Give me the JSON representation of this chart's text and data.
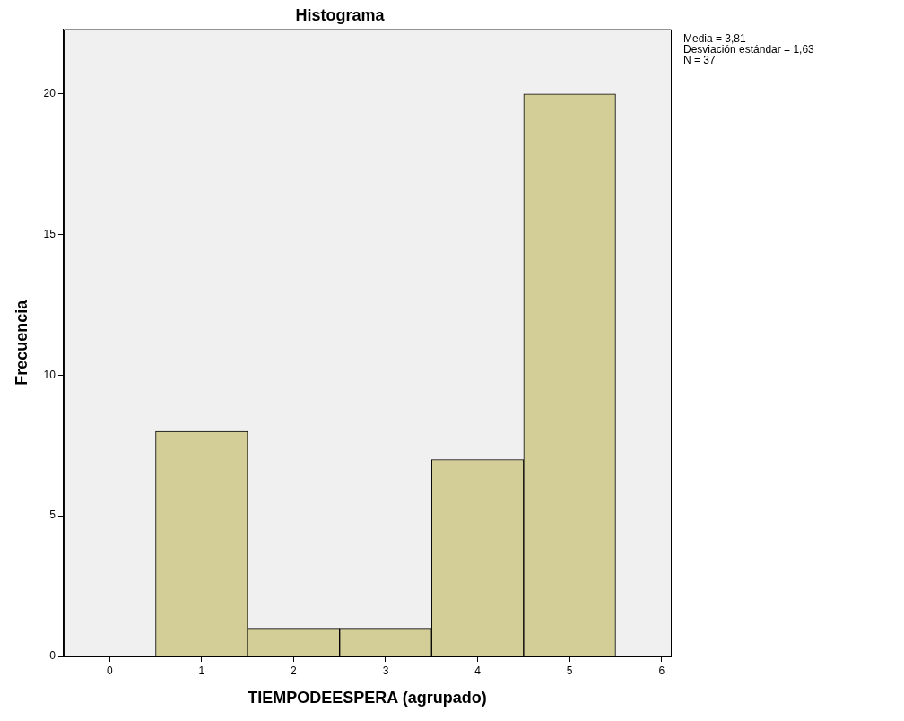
{
  "chart_data": {
    "type": "histogram",
    "title": "Histograma",
    "xlabel": "TIEMPODEESPERA (agrupado)",
    "ylabel": "Frecuencia",
    "bins": [
      0.5,
      1.5,
      2.5,
      3.5,
      4.5,
      5.5
    ],
    "values": [
      8,
      1,
      1,
      7,
      20
    ],
    "color": "#d3cd98",
    "xlim": [
      -0.5,
      6.1
    ],
    "xticks": [
      0,
      1,
      2,
      3,
      4,
      5,
      6
    ],
    "ylim": [
      0,
      22.3
    ],
    "yticks": [
      0,
      5,
      10,
      15,
      20
    ],
    "grid": false,
    "annotations": [
      "Media = 3,81",
      "Desviación estándar = 1,63",
      "N = 37"
    ]
  }
}
